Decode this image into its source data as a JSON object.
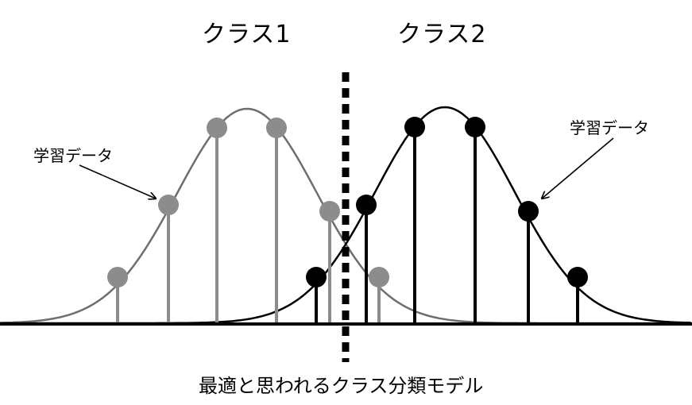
{
  "titles": {
    "class1": "クラス1",
    "class2": "クラス2"
  },
  "labels": {
    "training_data_left": "学習データ",
    "training_data_right": "学習データ"
  },
  "caption": "最適と思われるクラス分類モデル",
  "colors": {
    "class1": "#808080",
    "class2": "#000000",
    "axis": "#000000",
    "boundary": "#000000",
    "background": "#ffffff"
  }
}
